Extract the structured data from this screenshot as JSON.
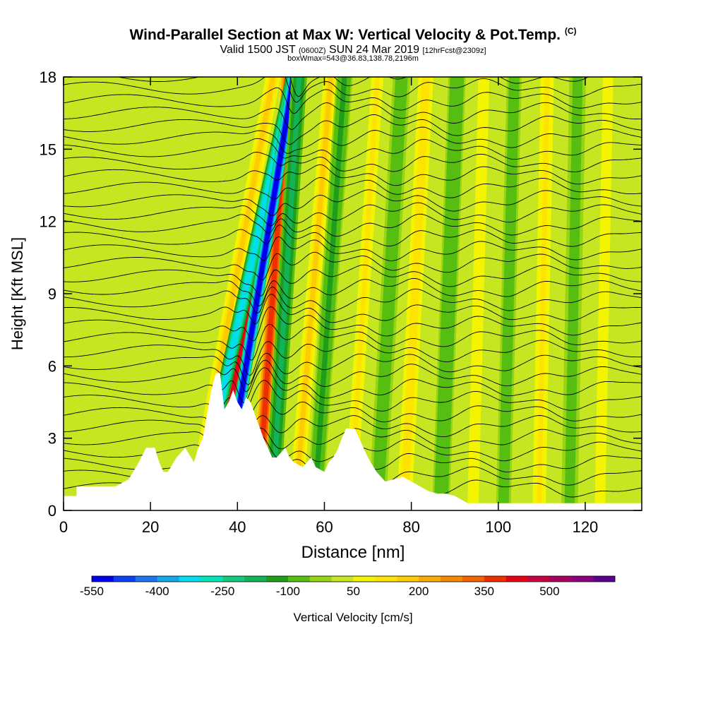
{
  "title": {
    "main": "Wind-Parallel Section at Max W: Vertical Velocity & Pot.Temp.",
    "copyright": "(C)",
    "valid_prefix": "Valid 1500 JST",
    "valid_utc": "(0600Z)",
    "valid_date": "SUN 24 Mar 2019",
    "forecast": "[12hrFcst@2309z]",
    "boxinfo": "boxWmax=543@36.83,138.78,2196m"
  },
  "colorbar": {
    "label": "Vertical Velocity [cm/s]",
    "tick_labels": [
      "-550",
      "-400",
      "-250",
      "-100",
      "50",
      "200",
      "350",
      "500"
    ],
    "colors": [
      "#0000ee",
      "#0a3ff5",
      "#1c74f0",
      "#12a8ea",
      "#00ddee",
      "#00e5b8",
      "#10cc7c",
      "#12b45a",
      "#1f9e1c",
      "#56be10",
      "#96d414",
      "#c6e622",
      "#f4f400",
      "#fde400",
      "#fccc00",
      "#f8ac00",
      "#f68800",
      "#f26400",
      "#ee2f00",
      "#e80018",
      "#c80040",
      "#a80060",
      "#8c0080",
      "#5a008c"
    ]
  },
  "chart_data": {
    "type": "heatmap",
    "xlabel": "Distance [nm]",
    "ylabel": "Height [Kft MSL]",
    "xlim": [
      0,
      133
    ],
    "ylim": [
      0,
      18
    ],
    "x_ticks": [
      0,
      20,
      40,
      60,
      80,
      100,
      120
    ],
    "y_ticks": [
      0,
      3,
      6,
      9,
      12,
      15,
      18
    ],
    "x_tick_labels": [
      "0",
      "20",
      "40",
      "60",
      "80",
      "100",
      "120"
    ],
    "y_tick_labels": [
      "0",
      "3",
      "6",
      "9",
      "12",
      "15",
      "18"
    ],
    "colorbar_range_cms": [
      -550,
      650
    ],
    "colorbar_step_cms": 50,
    "background_w_cms": 25,
    "terrain_kft": [
      [
        0,
        0.6
      ],
      [
        3,
        0.6
      ],
      [
        3,
        1.0
      ],
      [
        12,
        1.0
      ],
      [
        15,
        1.3
      ],
      [
        17,
        1.9
      ],
      [
        19,
        2.6
      ],
      [
        21,
        2.6
      ],
      [
        22,
        2.0
      ],
      [
        23,
        1.6
      ],
      [
        24,
        1.6
      ],
      [
        26,
        2.2
      ],
      [
        28,
        2.6
      ],
      [
        30,
        2.0
      ],
      [
        31,
        2.6
      ],
      [
        32,
        3.0
      ],
      [
        33,
        4.0
      ],
      [
        34,
        5.0
      ],
      [
        35,
        5.7
      ],
      [
        36,
        5.7
      ],
      [
        37,
        4.2
      ],
      [
        38,
        4.5
      ],
      [
        39,
        5.0
      ],
      [
        40,
        4.5
      ],
      [
        41,
        4.2
      ],
      [
        42,
        4.7
      ],
      [
        43,
        4.5
      ],
      [
        44,
        4.0
      ],
      [
        45,
        3.5
      ],
      [
        46,
        3.0
      ],
      [
        47,
        2.6
      ],
      [
        48,
        2.2
      ],
      [
        49,
        2.2
      ],
      [
        51,
        2.6
      ],
      [
        52,
        2.2
      ],
      [
        53,
        2.0
      ],
      [
        55,
        1.8
      ],
      [
        56,
        2.0
      ],
      [
        57,
        2.2
      ],
      [
        58,
        1.8
      ],
      [
        60,
        1.6
      ],
      [
        61,
        2.0
      ],
      [
        62,
        2.2
      ],
      [
        63,
        2.5
      ],
      [
        64,
        3.0
      ],
      [
        65,
        3.4
      ],
      [
        67,
        3.4
      ],
      [
        68,
        3.0
      ],
      [
        69,
        2.6
      ],
      [
        70,
        2.2
      ],
      [
        71,
        1.9
      ],
      [
        72,
        1.6
      ],
      [
        74,
        1.2
      ],
      [
        76,
        1.3
      ],
      [
        78,
        1.4
      ],
      [
        80,
        1.2
      ],
      [
        82,
        1.0
      ],
      [
        84,
        0.8
      ],
      [
        86,
        0.7
      ],
      [
        88,
        0.7
      ],
      [
        90,
        0.6
      ],
      [
        92,
        0.4
      ],
      [
        93,
        0.3
      ],
      [
        133,
        0.3
      ]
    ],
    "updraft_bands": [
      {
        "x0": 36,
        "tilt": 2.9,
        "width": 1.3,
        "w": 150
      },
      {
        "x0": 40,
        "tilt": 2.9,
        "width": 1.0,
        "w": 400
      },
      {
        "x0": 47,
        "tilt": 1.1,
        "width": 1.3,
        "w": 380
      },
      {
        "x0": 56,
        "tilt": 1.3,
        "width": 1.2,
        "w": 150
      },
      {
        "x0": 68,
        "tilt": 1.0,
        "width": 1.3,
        "w": 110
      },
      {
        "x0": 80,
        "tilt": 0.8,
        "width": 1.5,
        "w": 130
      },
      {
        "x0": 95,
        "tilt": 0.4,
        "width": 1.4,
        "w": 80
      },
      {
        "x0": 110,
        "tilt": 0.3,
        "width": 1.5,
        "w": 100
      },
      {
        "x0": 124,
        "tilt": 0.3,
        "width": 1.6,
        "w": 70
      }
    ],
    "downdraft_bands": [
      {
        "x0": 38,
        "tilt": 3.5,
        "width": 1.2,
        "w": -320
      },
      {
        "x0": 42,
        "tilt": 2.6,
        "width": 1.0,
        "w": -550
      },
      {
        "x0": 50,
        "tilt": 1.0,
        "width": 1.4,
        "w": -160
      },
      {
        "x0": 60,
        "tilt": 1.1,
        "width": 1.5,
        "w": -110
      },
      {
        "x0": 74,
        "tilt": 0.9,
        "width": 1.6,
        "w": -90
      },
      {
        "x0": 88,
        "tilt": 0.6,
        "width": 1.6,
        "w": -100
      },
      {
        "x0": 102,
        "tilt": 0.4,
        "width": 1.3,
        "w": -80
      },
      {
        "x0": 117,
        "tilt": 0.3,
        "width": 1.5,
        "w": -70
      }
    ]
  }
}
